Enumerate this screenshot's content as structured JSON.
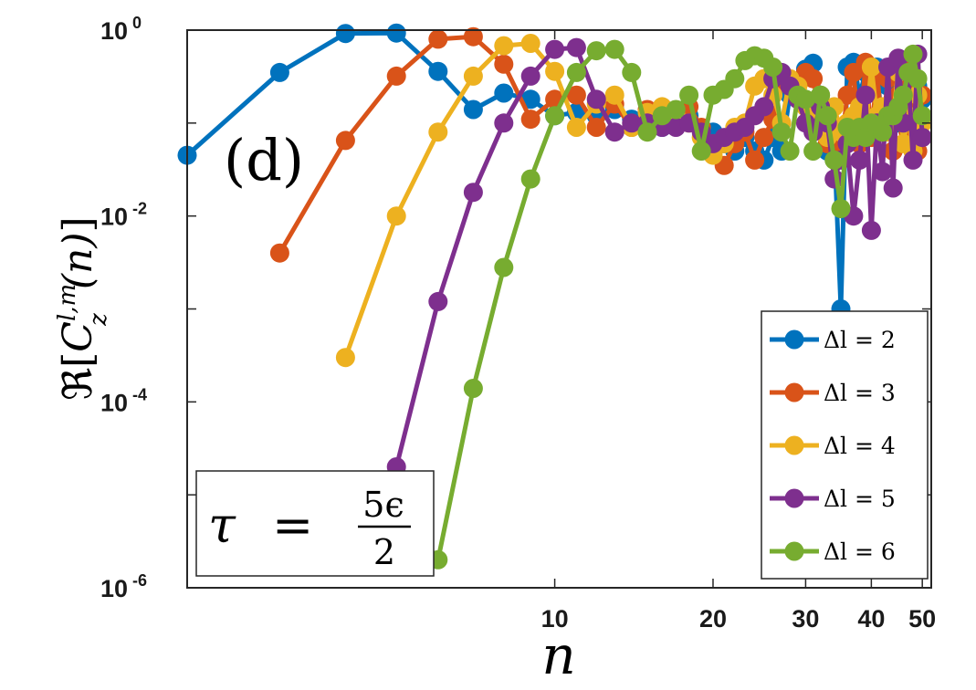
{
  "chart_data": {
    "type": "line",
    "panel_label": "(d)",
    "xlabel": "n",
    "ylabel_parts": {
      "re": "ℜ",
      "open": "[",
      "c": "C",
      "sup": "l,m",
      "sub": "z",
      "arg": "(n)",
      "close": "]"
    },
    "xscale": "log",
    "yscale": "log",
    "xlim": [
      2,
      52
    ],
    "ylim": [
      1e-06,
      1
    ],
    "x_tick_labels": [
      "10",
      "20",
      "30",
      "40",
      "50"
    ],
    "x_ticks": [
      10,
      20,
      30,
      40,
      50
    ],
    "y_tick_labels": [
      {
        "base": "10",
        "exp": "0"
      },
      {
        "base": "10",
        "exp": "-2"
      },
      {
        "base": "10",
        "exp": "-4"
      },
      {
        "base": "10",
        "exp": "-6"
      }
    ],
    "y_ticks": [
      1,
      0.01,
      0.0001,
      1e-06
    ],
    "annotation": {
      "lhs": "τ",
      "eq": "=",
      "num": "5ϵ",
      "den": "2"
    },
    "legend_position": "bottom-right",
    "series": [
      {
        "name": "Δl = 2",
        "color": "#0072BD",
        "x": [
          2,
          3,
          4,
          5,
          6,
          7,
          8,
          9,
          10,
          11,
          12,
          13,
          14,
          15,
          16,
          17,
          18,
          20,
          21,
          22,
          23,
          24,
          25,
          26,
          27,
          28,
          29,
          30,
          31,
          32,
          33,
          34,
          35,
          36,
          37,
          38,
          39,
          40,
          41,
          42,
          43,
          44,
          45,
          46,
          47,
          48,
          49,
          50
        ],
        "y": [
          0.045,
          0.35,
          0.92,
          0.93,
          0.36,
          0.14,
          0.21,
          0.18,
          0.12,
          0.13,
          0.12,
          0.14,
          0.11,
          0.12,
          0.09,
          0.11,
          0.12,
          0.08,
          0.06,
          0.05,
          0.07,
          0.05,
          0.04,
          0.07,
          0.05,
          0.2,
          0.2,
          0.38,
          0.44,
          0.2,
          0.05,
          0.06,
          0.001,
          0.4,
          0.45,
          0.2,
          0.35,
          0.25,
          0.4,
          0.08,
          0.25,
          0.3,
          0.1,
          0.25,
          0.35,
          0.12,
          0.25,
          0.18
        ]
      },
      {
        "name": "Δl = 3",
        "color": "#D95319",
        "x": [
          3,
          4,
          5,
          6,
          7,
          8,
          9,
          10,
          11,
          12,
          13,
          14,
          15,
          16,
          17,
          18,
          19,
          20,
          21,
          22,
          23,
          24,
          25,
          26,
          27,
          28,
          29,
          30,
          31,
          32,
          33,
          34,
          35,
          36,
          37,
          38,
          39,
          40,
          41,
          42,
          43,
          44,
          45,
          46,
          47,
          48,
          49,
          50
        ],
        "y": [
          0.004,
          0.065,
          0.32,
          0.8,
          0.85,
          0.43,
          0.11,
          0.18,
          0.2,
          0.09,
          0.16,
          0.09,
          0.14,
          0.13,
          0.12,
          0.15,
          0.09,
          0.06,
          0.035,
          0.06,
          0.08,
          0.04,
          0.07,
          0.11,
          0.3,
          0.25,
          0.2,
          0.35,
          0.3,
          0.12,
          0.06,
          0.09,
          0.05,
          0.2,
          0.35,
          0.06,
          0.45,
          0.07,
          0.35,
          0.08,
          0.3,
          0.05,
          0.2,
          0.45,
          0.08,
          0.3,
          0.05,
          0.2
        ]
      },
      {
        "name": "Δl = 4",
        "color": "#EDB120",
        "x": [
          4,
          5,
          6,
          7,
          8,
          9,
          10,
          11,
          12,
          13,
          14,
          15,
          16,
          17,
          18,
          19,
          20,
          21,
          22,
          23,
          24,
          25,
          26,
          27,
          28,
          29,
          30,
          31,
          32,
          33,
          34,
          35,
          36,
          37,
          38,
          39,
          40,
          41,
          42,
          43,
          44,
          45,
          46,
          47,
          48,
          49,
          50
        ],
        "y": [
          0.0003,
          0.01,
          0.08,
          0.32,
          0.68,
          0.72,
          0.36,
          0.09,
          0.16,
          0.2,
          0.09,
          0.13,
          0.15,
          0.12,
          0.1,
          0.07,
          0.045,
          0.06,
          0.09,
          0.1,
          0.25,
          0.3,
          0.2,
          0.1,
          0.3,
          0.25,
          0.15,
          0.12,
          0.2,
          0.07,
          0.15,
          0.08,
          0.1,
          0.12,
          0.15,
          0.08,
          0.4,
          0.12,
          0.15,
          0.08,
          0.12,
          0.35,
          0.06,
          0.12,
          0.05,
          0.2,
          0.1
        ]
      },
      {
        "name": "Δl = 5",
        "color": "#7E2F8E",
        "x": [
          5,
          6,
          7,
          8,
          9,
          10,
          11,
          12,
          13,
          14,
          15,
          16,
          17,
          18,
          19,
          20,
          21,
          22,
          23,
          24,
          25,
          26,
          27,
          28,
          29,
          30,
          31,
          32,
          33,
          34,
          35,
          36,
          37,
          38,
          39,
          40,
          41,
          42,
          43,
          44,
          45,
          46,
          47,
          48,
          49,
          50
        ],
        "y": [
          2e-05,
          0.0012,
          0.018,
          0.1,
          0.32,
          0.62,
          0.65,
          0.18,
          0.08,
          0.1,
          0.1,
          0.09,
          0.09,
          0.1,
          0.08,
          0.06,
          0.07,
          0.08,
          0.09,
          0.12,
          0.15,
          0.3,
          0.35,
          0.25,
          0.18,
          0.1,
          0.08,
          0.15,
          0.1,
          0.025,
          0.04,
          0.06,
          0.01,
          0.04,
          0.2,
          0.007,
          0.1,
          0.03,
          0.4,
          0.02,
          0.5,
          0.1,
          0.35,
          0.04,
          0.55,
          0.07
        ]
      },
      {
        "name": "Δl = 6",
        "color": "#77AC30",
        "x": [
          6,
          7,
          8,
          9,
          10,
          11,
          12,
          13,
          14,
          15,
          16,
          17,
          18,
          19,
          20,
          21,
          22,
          23,
          24,
          25,
          26,
          27,
          28,
          29,
          30,
          31,
          32,
          33,
          34,
          35,
          36,
          37,
          38,
          39,
          40,
          41,
          42,
          43,
          44,
          45,
          46,
          47,
          48,
          49,
          50
        ],
        "y": [
          2e-06,
          0.00014,
          0.0028,
          0.025,
          0.12,
          0.35,
          0.6,
          0.62,
          0.35,
          0.08,
          0.12,
          0.14,
          0.2,
          0.05,
          0.2,
          0.23,
          0.3,
          0.47,
          0.53,
          0.5,
          0.4,
          0.08,
          0.05,
          0.2,
          0.18,
          0.05,
          0.2,
          0.12,
          0.04,
          0.012,
          0.09,
          0.07,
          0.09,
          0.07,
          0.1,
          0.09,
          0.08,
          0.12,
          0.12,
          0.15,
          0.2,
          0.35,
          0.55,
          0.3,
          0.12
        ]
      }
    ]
  }
}
